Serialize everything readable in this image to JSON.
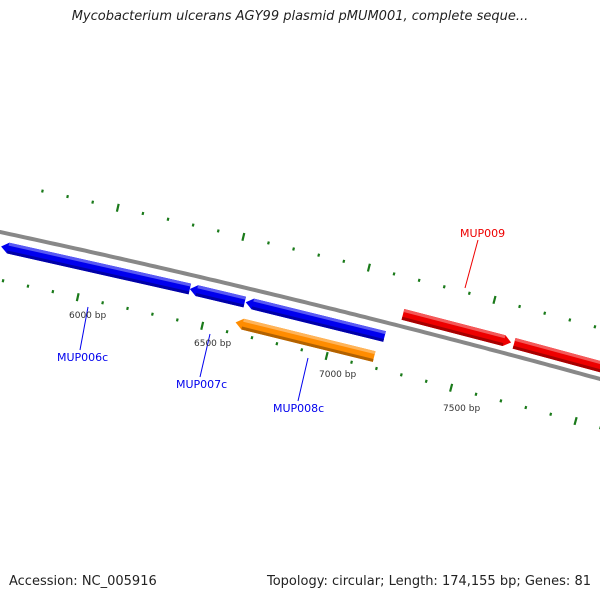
{
  "title": "Mycobacterium ulcerans AGY99 plasmid pMUM001, complete seque...",
  "footer": {
    "accession": "Accession: NC_005916",
    "summary": "Topology: circular; Length: 174,155 bp; Genes: 81"
  },
  "colors": {
    "backbone": "#888888",
    "tick": "#1a7a1a",
    "reverse_gene": "#0000ee",
    "forward_gene": "#ee0000",
    "other_feature": "#ff8c00"
  },
  "ticks": {
    "start_bp": 5700,
    "end_bp": 8100,
    "minor_step_bp": 100,
    "major_step_bp": 500,
    "labels": [
      {
        "bp": 6000,
        "text": "6000 bp"
      },
      {
        "bp": 6500,
        "text": "6500 bp"
      },
      {
        "bp": 7000,
        "text": "7000 bp"
      },
      {
        "bp": 7500,
        "text": "7500 bp"
      }
    ]
  },
  "features": [
    {
      "name": "MUP006c",
      "start": 5664,
      "end": 6420,
      "strand": "-",
      "color": "#0000ee",
      "label_visible": true,
      "track": "reverse"
    },
    {
      "name": "MUP007c",
      "start": 6420,
      "end": 6640,
      "strand": "-",
      "color": "#0000ee",
      "label_visible": true,
      "track": "reverse"
    },
    {
      "name": "MUP008c",
      "start": 6644,
      "end": 7200,
      "strand": "-",
      "color": "#0000ee",
      "label_visible": true,
      "track": "reverse"
    },
    {
      "name": "",
      "start": 6624,
      "end": 7180,
      "strand": "-",
      "color": "#ff8c00",
      "label_visible": false,
      "track": "other"
    },
    {
      "name": "MUP009",
      "start": 7248,
      "end": 7680,
      "strand": "+",
      "color": "#ee0000",
      "label_visible": true,
      "track": "forward"
    },
    {
      "name": "",
      "start": 7692,
      "end": 8100,
      "strand": "+",
      "color": "#ee0000",
      "label_visible": false,
      "track": "forward"
    }
  ],
  "gene_labels": [
    {
      "text": "MUP006c",
      "color": "#0000ee"
    },
    {
      "text": "MUP007c",
      "color": "#0000ee"
    },
    {
      "text": "MUP008c",
      "color": "#0000ee"
    },
    {
      "text": "MUP009",
      "color": "#ee0000"
    }
  ]
}
